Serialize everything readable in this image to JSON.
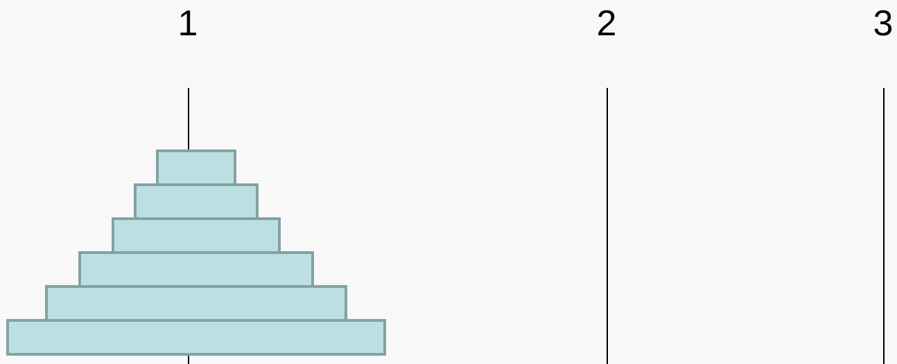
{
  "game": "Tower of Hanoi",
  "pegs": [
    {
      "label": "1",
      "disks": [
        6,
        5,
        4,
        3,
        2,
        1
      ]
    },
    {
      "label": "2",
      "disks": []
    },
    {
      "label": "3",
      "disks": []
    }
  ],
  "colors": {
    "background": "#f8f8f8",
    "disk_fill": "#bce0e2",
    "disk_border": "#84a1a4",
    "rod": "#000000"
  }
}
